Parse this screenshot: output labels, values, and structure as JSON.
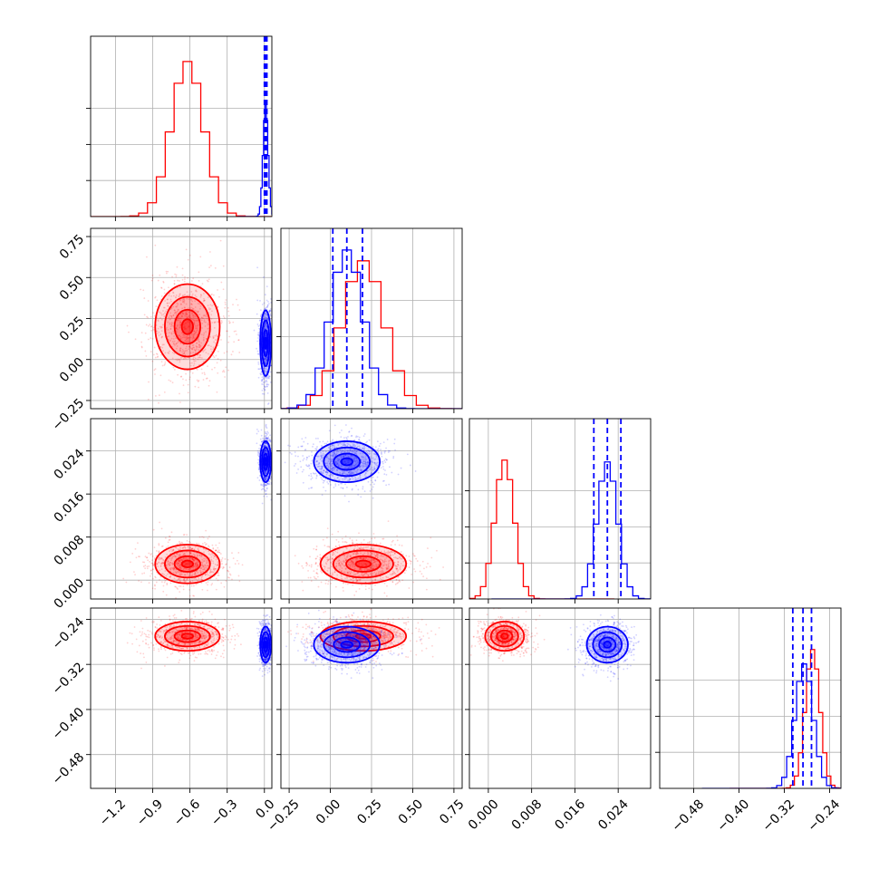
{
  "chart_data": {
    "type": "corner",
    "grid": true,
    "colors": {
      "model_a": "#ff0000",
      "model_b": "#0000ff"
    },
    "params": [
      {
        "ticks": [
          -1.2,
          -0.9,
          -0.6,
          -0.3,
          0.0
        ],
        "tick_labels": [
          "−1.2",
          "−0.9",
          "−0.6",
          "−0.3",
          "0.0"
        ],
        "range": [
          -1.4,
          0.06
        ]
      },
      {
        "ticks": [
          -0.25,
          0.0,
          0.25,
          0.5,
          0.75
        ],
        "tick_labels": [
          "−0.25",
          "0.00",
          "0.25",
          "0.50",
          "0.75"
        ],
        "range": [
          -0.3,
          0.8
        ]
      },
      {
        "ticks": [
          0.0,
          0.008,
          0.016,
          0.024
        ],
        "tick_labels": [
          "0.000",
          "0.008",
          "0.016",
          "0.024"
        ],
        "range": [
          -0.0035,
          0.03
        ]
      },
      {
        "ticks": [
          -0.48,
          -0.4,
          -0.32,
          -0.24
        ],
        "tick_labels": [
          "−0.48",
          "−0.40",
          "−0.32",
          "−0.24"
        ],
        "range": [
          -0.54,
          -0.22
        ]
      }
    ],
    "series": [
      {
        "color": "#ff0000",
        "means": [
          -0.62,
          0.2,
          0.003,
          -0.27
        ],
        "sds": [
          0.13,
          0.13,
          0.0018,
          0.013
        ],
        "quantiles": null,
        "hist_peaks": [
          0.86,
          0.82,
          0.77,
          0.77
        ]
      },
      {
        "color": "#0000ff",
        "means": [
          0.01,
          0.1,
          0.022,
          -0.285
        ],
        "sds": [
          0.02,
          0.1,
          0.0019,
          0.016
        ],
        "quantiles": [
          [
            0.0,
            0.01,
            0.02
          ],
          [
            0.015,
            0.1,
            0.195
          ],
          [
            0.0195,
            0.022,
            0.0245
          ],
          [
            -0.305,
            -0.287,
            -0.272
          ]
        ],
        "hist_peaks": [
          0.62,
          0.88,
          0.76,
          0.69
        ]
      }
    ]
  }
}
